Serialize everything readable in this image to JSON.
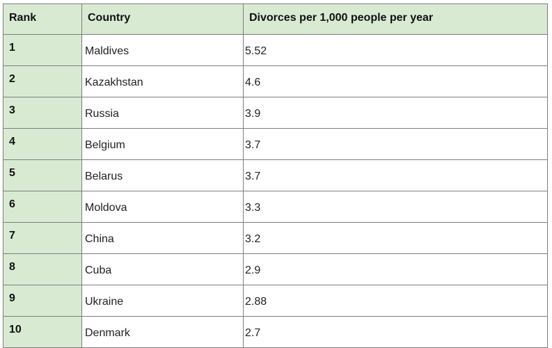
{
  "table": {
    "headers": {
      "rank": "Rank",
      "country": "Country",
      "rate": "Divorces per 1,000 people per year"
    },
    "rows": [
      {
        "rank": "1",
        "country": "Maldives",
        "rate": "5.52"
      },
      {
        "rank": "2",
        "country": "Kazakhstan",
        "rate": "4.6"
      },
      {
        "rank": "3",
        "country": "Russia",
        "rate": "3.9"
      },
      {
        "rank": "4",
        "country": "Belgium",
        "rate": "3.7"
      },
      {
        "rank": "5",
        "country": "Belarus",
        "rate": "3.7"
      },
      {
        "rank": "6",
        "country": "Moldova",
        "rate": "3.3"
      },
      {
        "rank": "7",
        "country": "China",
        "rate": "3.2"
      },
      {
        "rank": "8",
        "country": "Cuba",
        "rate": "2.9"
      },
      {
        "rank": "9",
        "country": "Ukraine",
        "rate": "2.88"
      },
      {
        "rank": "10",
        "country": "Denmark",
        "rate": "2.7"
      }
    ]
  },
  "colors": {
    "header_fill": "#d9ead3",
    "rank_fill": "#d9ead3",
    "border": "#7d7d7d"
  }
}
